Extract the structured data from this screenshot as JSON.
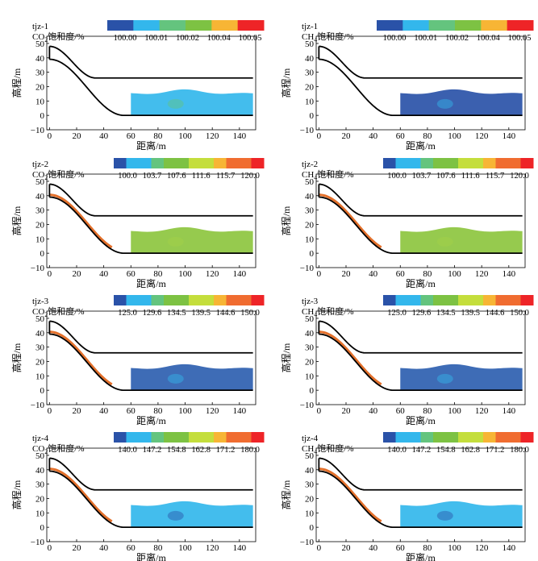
{
  "colors": {
    "palette": [
      "#2a52a8",
      "#33b7ec",
      "#64c47e",
      "#7dc243",
      "#c4de3c",
      "#f7b535",
      "#f06c30",
      "#ee2427"
    ],
    "outline": "#000000",
    "rim": "#e3702b"
  },
  "axes": {
    "xlabel": "距离/m",
    "ylabel": "高程/m",
    "xticks": [
      "0",
      "20",
      "40",
      "60",
      "80",
      "100",
      "120",
      "140"
    ],
    "yticks": [
      "50",
      "40",
      "30",
      "20",
      "10",
      "0",
      "−10"
    ]
  },
  "chart_data": [
    {
      "type": "heatmap",
      "case": "tjz-1",
      "variable": "CO2",
      "legend_title": "CO2饱和度/%",
      "colorbar_ticks": [
        "100.00",
        "100.01",
        "100.02",
        "100.04",
        "100.05"
      ],
      "colorbar_segments": 6,
      "fill_color": "#33b7ec",
      "rim": false,
      "accent": "#64c47e",
      "xlim": [
        -2,
        152
      ],
      "ylim": [
        -10,
        55
      ]
    },
    {
      "type": "heatmap",
      "case": "tjz-1",
      "variable": "CH4",
      "legend_title": "CH4饱和度/%",
      "colorbar_ticks": [
        "100.00",
        "100.01",
        "100.02",
        "100.04",
        "100.05"
      ],
      "colorbar_segments": 6,
      "fill_color": "#2a52a8",
      "rim": false,
      "accent": "#33b7ec",
      "xlim": [
        -2,
        152
      ],
      "ylim": [
        -10,
        55
      ]
    },
    {
      "type": "heatmap",
      "case": "tjz-2",
      "variable": "CO2",
      "legend_title": "CO2饱和度/%",
      "colorbar_ticks": [
        "100.0",
        "103.7",
        "107.6",
        "111.6",
        "115.7",
        "120.0"
      ],
      "colorbar_segments": 12,
      "fill_color": "#8dc63f",
      "rim": true,
      "accent": "#a5d04a",
      "xlim": [
        -2,
        152
      ],
      "ylim": [
        -10,
        55
      ]
    },
    {
      "type": "heatmap",
      "case": "tjz-2",
      "variable": "CH4",
      "legend_title": "CH4饱和度/%",
      "colorbar_ticks": [
        "100.0",
        "103.7",
        "107.6",
        "111.6",
        "115.7",
        "120.0"
      ],
      "colorbar_segments": 12,
      "fill_color": "#8dc63f",
      "rim": true,
      "accent": "#a5d04a",
      "xlim": [
        -2,
        152
      ],
      "ylim": [
        -10,
        55
      ]
    },
    {
      "type": "heatmap",
      "case": "tjz-3",
      "variable": "CO2",
      "legend_title": "CO2饱和度/%",
      "colorbar_ticks": [
        "125.0",
        "129.6",
        "134.5",
        "139.5",
        "144.6",
        "150.0"
      ],
      "colorbar_segments": 12,
      "fill_color": "#2e5fb0",
      "rim": true,
      "accent": "#33b7ec",
      "xlim": [
        -2,
        152
      ],
      "ylim": [
        -10,
        55
      ]
    },
    {
      "type": "heatmap",
      "case": "tjz-3",
      "variable": "CH4",
      "legend_title": "CH4饱和度/%",
      "colorbar_ticks": [
        "125.0",
        "129.6",
        "134.5",
        "139.5",
        "144.6",
        "150.0"
      ],
      "colorbar_segments": 12,
      "fill_color": "#2e5fb0",
      "rim": true,
      "accent": "#33b7ec",
      "xlim": [
        -2,
        152
      ],
      "ylim": [
        -10,
        55
      ]
    },
    {
      "type": "heatmap",
      "case": "tjz-4",
      "variable": "CO2",
      "legend_title": "CO2饱和度/%",
      "colorbar_ticks": [
        "140.0",
        "147.2",
        "154.8",
        "162.8",
        "171.2",
        "180.0"
      ],
      "colorbar_segments": 12,
      "fill_color": "#33b7ec",
      "rim": true,
      "accent": "#2a52a8",
      "xlim": [
        -2,
        152
      ],
      "ylim": [
        -10,
        55
      ]
    },
    {
      "type": "heatmap",
      "case": "tjz-4",
      "variable": "CH4",
      "legend_title": "CH4饱和度/%",
      "colorbar_ticks": [
        "140.0",
        "147.2",
        "154.8",
        "162.8",
        "171.2",
        "180.0"
      ],
      "colorbar_segments": 12,
      "fill_color": "#33b7ec",
      "rim": true,
      "accent": "#2a52a8",
      "xlim": [
        -2,
        152
      ],
      "ylim": [
        -10,
        55
      ]
    }
  ]
}
